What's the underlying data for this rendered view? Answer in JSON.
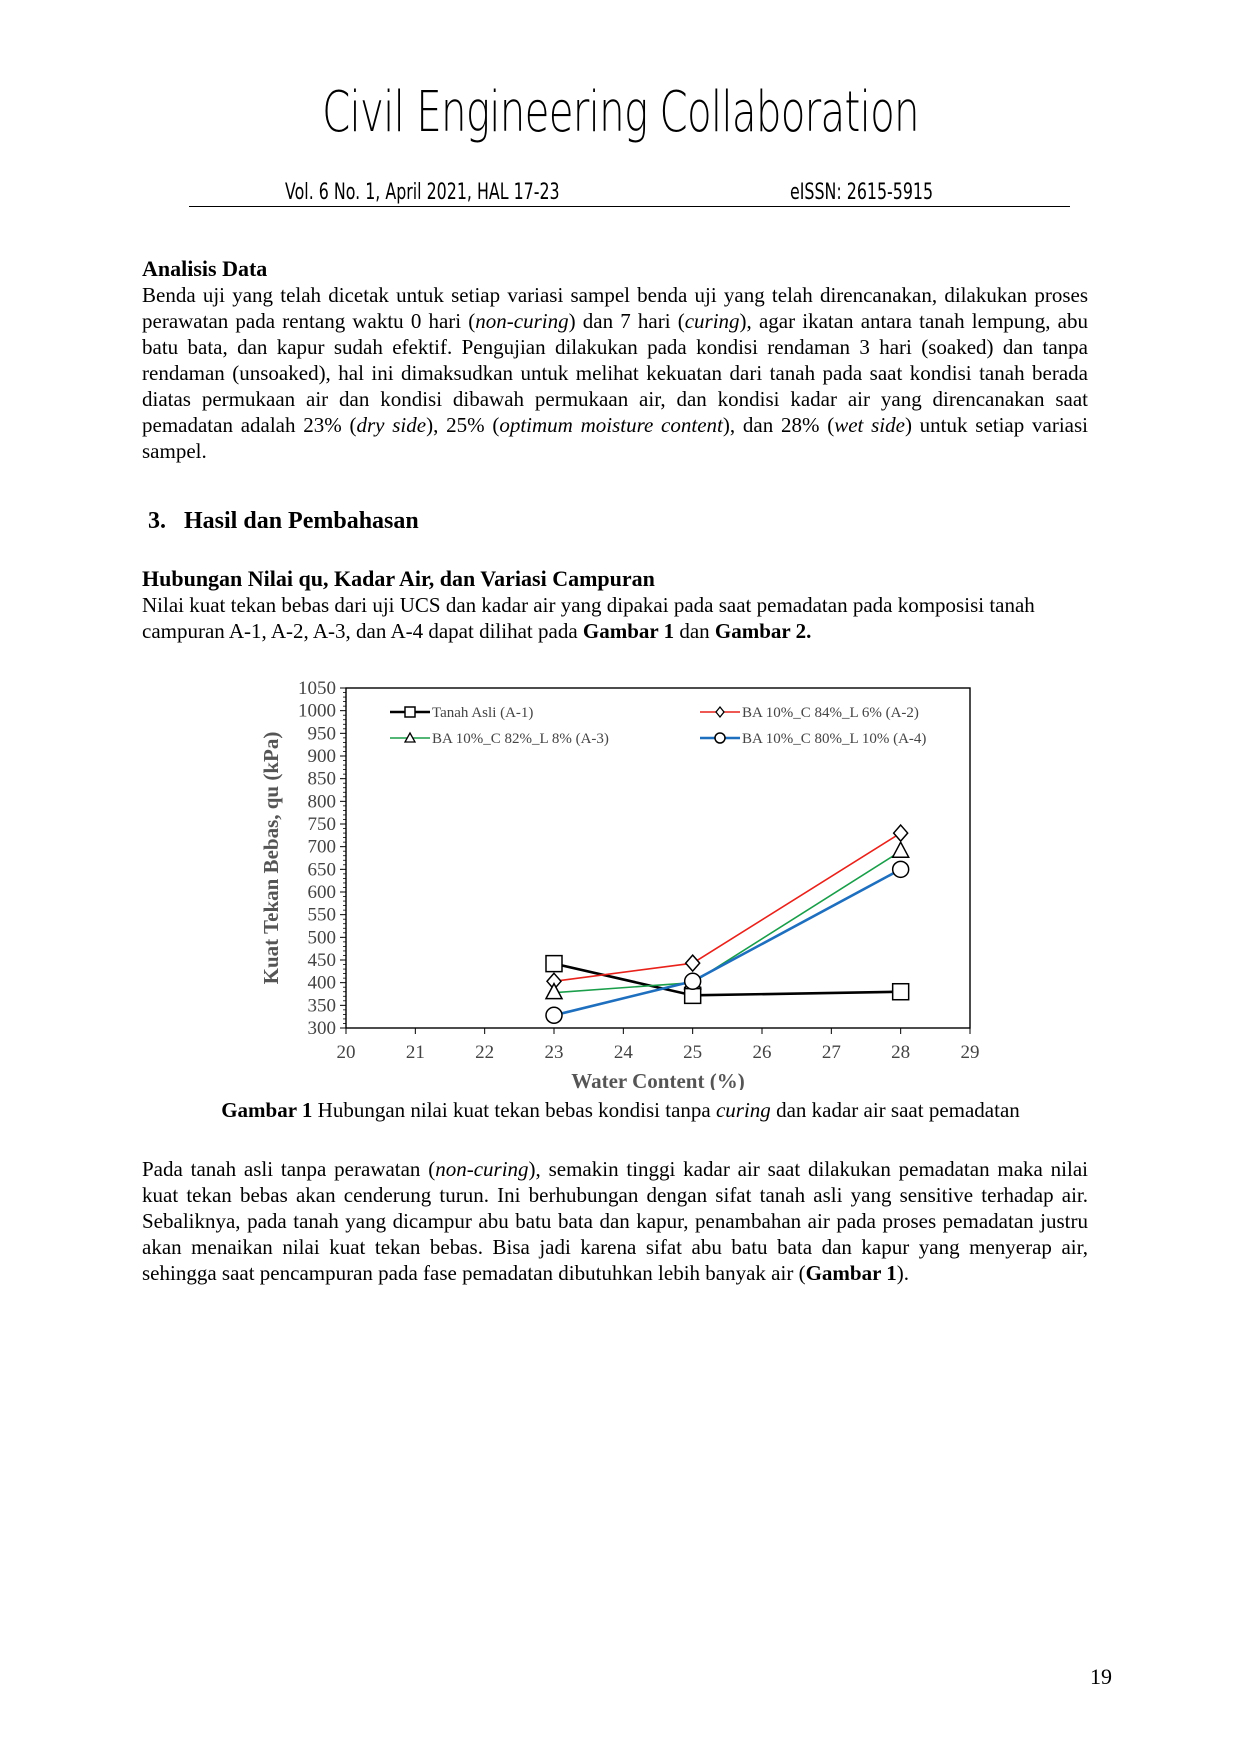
{
  "header": {
    "journal_title": "Civil Engineering Collaboration",
    "volume_info": "Vol. 6 No. 1, April 2021, HAL 17-23",
    "issn": "eISSN: 2615-5915"
  },
  "analisis": {
    "heading": "Analisis Data",
    "p1": "Benda uji yang telah dicetak untuk setiap variasi sampel benda uji yang telah direncanakan, dilakukan proses perawatan pada rentang waktu 0 hari (",
    "p1_i1": "non-curing",
    "p1_b": ") dan 7  hari (",
    "p1_i2": "curing",
    "p1_c": "), agar ikatan antara tanah lempung, abu batu bata, dan kapur sudah efektif. Pengujian dilakukan pada kondisi rendaman 3 hari (soaked) dan tanpa rendaman (unsoaked), hal ini dimaksudkan untuk melihat kekuatan dari tanah pada saat kondisi tanah berada diatas permukaan air dan kondisi dibawah permukaan air, dan kondisi kadar air yang direncanakan saat pemadatan adalah 23% (",
    "p1_i3": "dry side",
    "p1_d": "), 25% (",
    "p1_i4": "optimum moisture content",
    "p1_e": "), dan 28% (",
    "p1_i5": "wet side",
    "p1_f": ") untuk setiap variasi sampel."
  },
  "section3": {
    "heading": "3.   Hasil dan Pembahasan"
  },
  "hubungan": {
    "heading": "Hubungan Nilai qu, Kadar Air, dan Variasi Campuran",
    "p1": "Nilai kuat tekan bebas dari uji UCS dan kadar air yang dipakai pada saat pemadatan pada komposisi tanah campuran A-1, A-2, A-3, dan A-4 dapat dilihat pada ",
    "ref1": "Gambar 1",
    "mid": " dan ",
    "ref2": "Gambar 2."
  },
  "chart_data": {
    "type": "line",
    "xlabel": "Water Content (%)",
    "ylabel": "Kuat Tekan Bebas, qu (kPa)",
    "xlim": [
      20,
      29
    ],
    "ylim": [
      300,
      1050
    ],
    "x_ticks": [
      20,
      21,
      22,
      23,
      24,
      25,
      26,
      27,
      28,
      29
    ],
    "y_ticks": [
      300,
      350,
      400,
      450,
      500,
      550,
      600,
      650,
      700,
      750,
      800,
      850,
      900,
      950,
      1000,
      1050
    ],
    "x": [
      23,
      25,
      28
    ],
    "legend_placement": "top",
    "series": [
      {
        "name": "Tanah Asli (A-1)",
        "values": [
          442,
          372,
          380
        ],
        "color": "#000000",
        "marker": "square"
      },
      {
        "name": "BA 10%_C 84%_L 6% (A-2)",
        "values": [
          403,
          443,
          730
        ],
        "color": "#e8221b",
        "marker": "diamond"
      },
      {
        "name": "BA 10%_C 82%_L 8% (A-3)",
        "values": [
          378,
          400,
          690
        ],
        "color": "#1a9e4a",
        "marker": "triangle"
      },
      {
        "name": "BA 10%_C 80%_L 10% (A-4)",
        "values": [
          328,
          403,
          650
        ],
        "color": "#1f6fbf",
        "marker": "circle"
      }
    ]
  },
  "caption": {
    "label": "Gambar 1",
    "text_a": " Hubungan nilai kuat tekan bebas kondisi tanpa ",
    "italic": "curing",
    "text_b": " dan kadar air saat pemadatan"
  },
  "pembahasan": {
    "p_a": "Pada tanah asli tanpa perawatan (",
    "p_i": "non-curing",
    "p_b": "), semakin tinggi kadar air saat dilakukan pemadatan maka nilai kuat tekan bebas akan cenderung turun. Ini berhubungan dengan sifat tanah asli yang sensitive terhadap air. Sebaliknya, pada tanah yang dicampur abu batu bata dan  kapur, penambahan air pada proses pemadatan justru akan menaikan nilai kuat tekan bebas. Bisa jadi karena sifat abu batu bata dan kapur yang menyerap air, sehingga saat pencampuran pada fase pemadatan dibutuhkan lebih banyak air (",
    "ref": "Gambar 1",
    "p_c": ")."
  },
  "page_number": "19"
}
